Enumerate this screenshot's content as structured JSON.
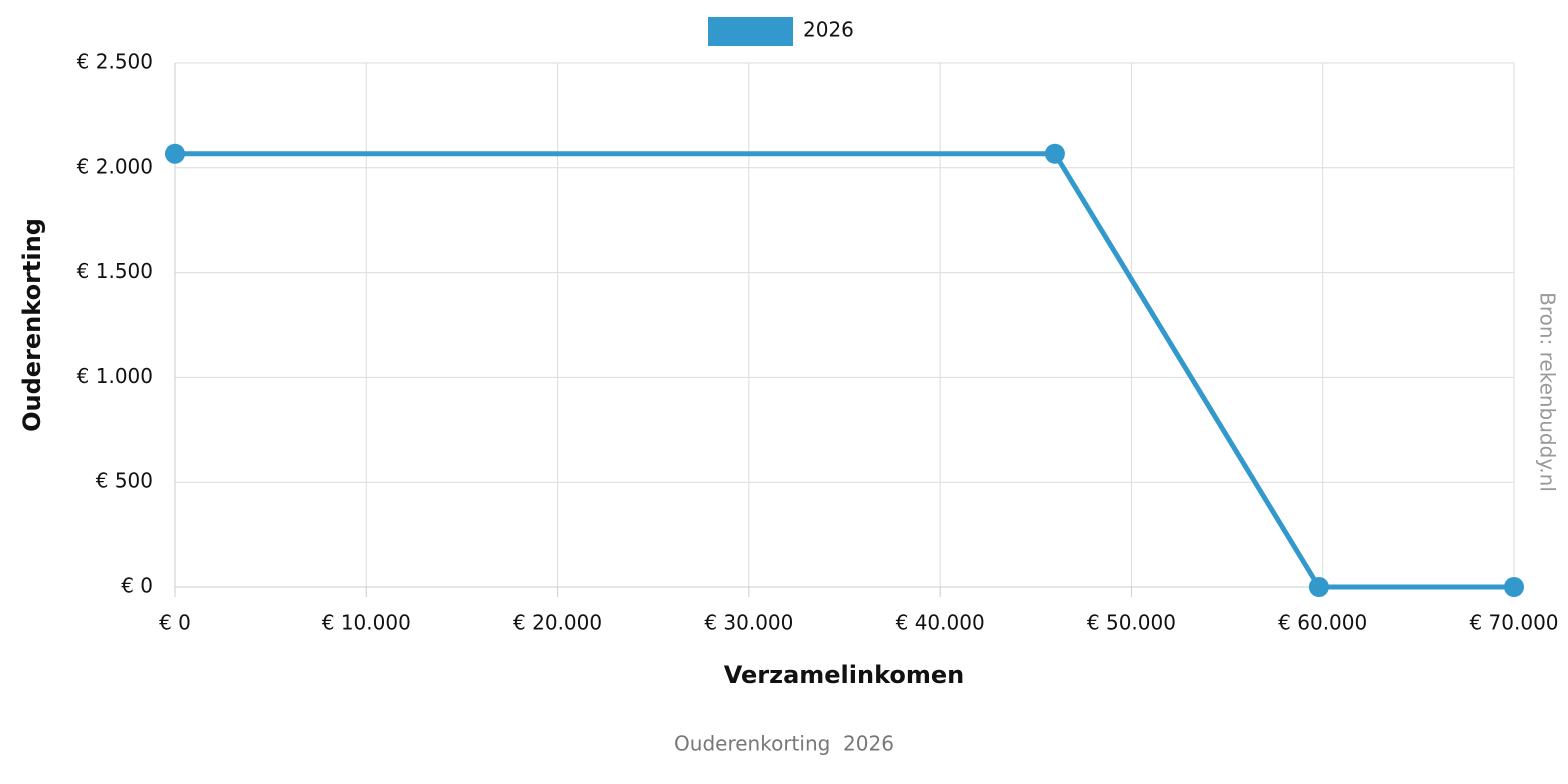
{
  "chart_data": {
    "type": "line",
    "caption": "Ouderenkorting  2026",
    "source": "Bron: rekenbuddy.nl",
    "x_label": "Verzamelinkomen",
    "y_label": "Ouderenkorting",
    "x": [
      0,
      46000,
      59800,
      70000
    ],
    "series": [
      {
        "name": "2026",
        "color": "#3399cc",
        "values": [
          2067,
          2067,
          0,
          0
        ]
      }
    ],
    "xlim": [
      0,
      70000
    ],
    "xticks": [
      {
        "value": 0,
        "label": "€ 0"
      },
      {
        "value": 10000,
        "label": "€ 10.000"
      },
      {
        "value": 20000,
        "label": "€ 20.000"
      },
      {
        "value": 30000,
        "label": "€ 30.000"
      },
      {
        "value": 40000,
        "label": "€ 40.000"
      },
      {
        "value": 50000,
        "label": "€ 50.000"
      },
      {
        "value": 60000,
        "label": "€ 60.000"
      },
      {
        "value": 70000,
        "label": "€ 70.000"
      }
    ],
    "ylim": [
      0,
      2500
    ],
    "yticks": [
      {
        "value": 0,
        "label": "€ 0"
      },
      {
        "value": 500,
        "label": "€ 500"
      },
      {
        "value": 1000,
        "label": "€ 1.000"
      },
      {
        "value": 1500,
        "label": "€ 1.500"
      },
      {
        "value": 2000,
        "label": "€ 2.000"
      },
      {
        "value": 2500,
        "label": "€ 2.500"
      }
    ],
    "grid": true,
    "legend": "top"
  }
}
